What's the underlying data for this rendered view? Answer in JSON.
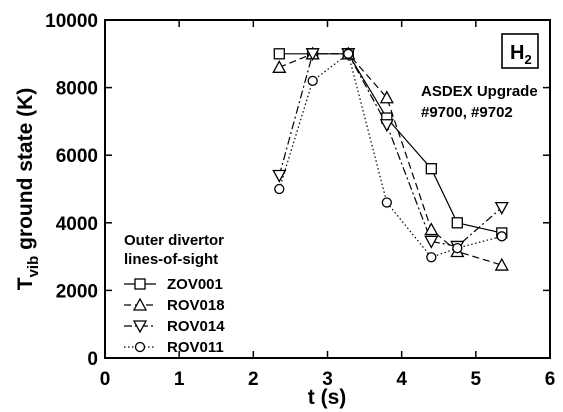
{
  "chart_data": {
    "type": "line",
    "xlabel": "t (s)",
    "ylabel_main": "T",
    "ylabel_sub": "vib",
    "ylabel_rest": " ground state (K)",
    "xlim": [
      0,
      6
    ],
    "ylim": [
      0,
      10000
    ],
    "xticks": [
      0,
      1,
      2,
      3,
      4,
      5,
      6
    ],
    "yticks": [
      0,
      2000,
      4000,
      6000,
      8000,
      10000
    ],
    "grid": false,
    "legend_position": "bottom-left",
    "legend_title_line1": "Outer divertor",
    "legend_title_line2": "lines-of-sight",
    "species_label_main": "H",
    "species_label_sub": "2",
    "annotation_line1": "ASDEX Upgrade",
    "annotation_line2": "#9700, #9702",
    "series": [
      {
        "name": "ZOV001",
        "marker": "square",
        "line_style": "solid",
        "x": [
          2.35,
          2.8,
          3.28,
          3.8,
          4.4,
          4.75,
          5.35
        ],
        "y": [
          9000,
          9000,
          9000,
          7100,
          5600,
          4000,
          3700
        ]
      },
      {
        "name": "ROV018",
        "marker": "triangle-up",
        "line_style": "dashed",
        "x": [
          2.35,
          2.8,
          3.28,
          3.8,
          4.4,
          4.75,
          5.35
        ],
        "y": [
          8600,
          9000,
          9000,
          7700,
          3800,
          3150,
          2750
        ]
      },
      {
        "name": "ROV014",
        "marker": "triangle-down",
        "line_style": "dashdot",
        "x": [
          2.35,
          2.8,
          3.28,
          3.8,
          4.4,
          4.75,
          5.35
        ],
        "y": [
          5400,
          9000,
          9000,
          6900,
          3450,
          3300,
          4450
        ]
      },
      {
        "name": "ROV011",
        "marker": "circle",
        "line_style": "dotted",
        "x": [
          2.35,
          2.8,
          3.28,
          3.8,
          4.4,
          4.75,
          5.35
        ],
        "y": [
          5000,
          8200,
          9000,
          4600,
          2980,
          3250,
          3600
        ]
      }
    ]
  }
}
